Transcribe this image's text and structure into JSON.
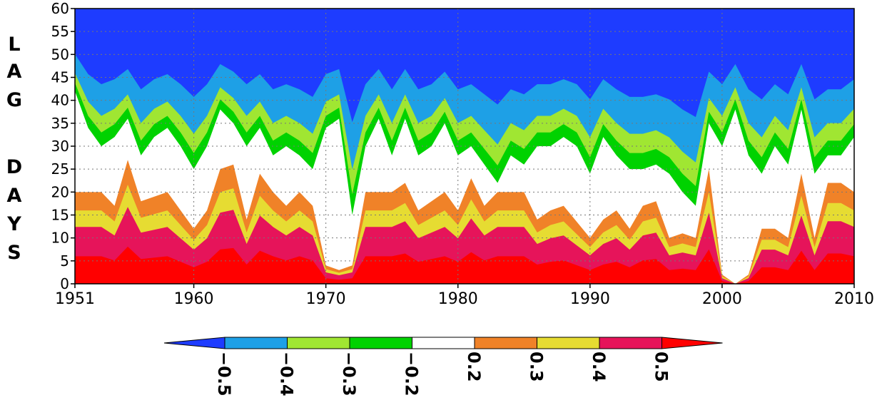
{
  "chart_data": {
    "type": "heatmap",
    "title": "",
    "xlabel": "",
    "ylabel": "LAG DAYS",
    "ylabel_letters": [
      "L",
      "A",
      "G",
      "",
      "D",
      "A",
      "Y",
      "S"
    ],
    "x_range": [
      1951,
      2010
    ],
    "y_range": [
      0,
      60
    ],
    "x_ticks": [
      1951,
      1960,
      1970,
      1980,
      1990,
      2000,
      2010
    ],
    "y_ticks": [
      0,
      5,
      10,
      15,
      20,
      25,
      30,
      35,
      40,
      45,
      50,
      55,
      60
    ],
    "grid": true,
    "colorbar": {
      "labels": [
        "-0.5",
        "-0.4",
        "-0.3",
        "-0.2",
        "0.2",
        "0.3",
        "0.4",
        "0.5"
      ],
      "colors": [
        "#1e3cff",
        "#1ea0e6",
        "#a0e632",
        "#00d200",
        "#ffffff",
        "#f08228",
        "#e6dc32",
        "#e6145a",
        "#ff0000"
      ]
    },
    "fields": {
      "low_lag_top": [
        [
          1951,
          20
        ],
        [
          1953,
          20
        ],
        [
          1954,
          17
        ],
        [
          1955,
          27
        ],
        [
          1956,
          18
        ],
        [
          1958,
          20
        ],
        [
          1960,
          12
        ],
        [
          1961,
          16
        ],
        [
          1962,
          25
        ],
        [
          1963,
          26
        ],
        [
          1964,
          14
        ],
        [
          1965,
          24
        ],
        [
          1966,
          20
        ],
        [
          1967,
          17
        ],
        [
          1968,
          20
        ],
        [
          1969,
          17
        ],
        [
          1970,
          4
        ],
        [
          1971,
          3
        ],
        [
          1972,
          4
        ],
        [
          1973,
          20
        ],
        [
          1975,
          20
        ],
        [
          1976,
          22
        ],
        [
          1977,
          16
        ],
        [
          1979,
          20
        ],
        [
          1980,
          16
        ],
        [
          1981,
          23
        ],
        [
          1982,
          17
        ],
        [
          1983,
          20
        ],
        [
          1985,
          20
        ],
        [
          1986,
          14
        ],
        [
          1987,
          16
        ],
        [
          1988,
          17
        ],
        [
          1990,
          10
        ],
        [
          1991,
          14
        ],
        [
          1992,
          16
        ],
        [
          1993,
          12
        ],
        [
          1994,
          17
        ],
        [
          1995,
          18
        ],
        [
          1996,
          10
        ],
        [
          1997,
          11
        ],
        [
          1998,
          10
        ],
        [
          1999,
          25
        ],
        [
          2000,
          2
        ],
        [
          2001,
          0
        ],
        [
          2002,
          2
        ],
        [
          2003,
          12
        ],
        [
          2004,
          12
        ],
        [
          2005,
          10
        ],
        [
          2006,
          24
        ],
        [
          2007,
          10
        ],
        [
          2008,
          22
        ],
        [
          2009,
          22
        ],
        [
          2010,
          20
        ]
      ],
      "high_lag_bottom": [
        [
          1951,
          42
        ],
        [
          1952,
          34
        ],
        [
          1953,
          30
        ],
        [
          1954,
          32
        ],
        [
          1955,
          36
        ],
        [
          1956,
          28
        ],
        [
          1957,
          32
        ],
        [
          1958,
          34
        ],
        [
          1959,
          30
        ],
        [
          1960,
          25
        ],
        [
          1961,
          30
        ],
        [
          1962,
          38
        ],
        [
          1963,
          35
        ],
        [
          1964,
          30
        ],
        [
          1965,
          34
        ],
        [
          1966,
          28
        ],
        [
          1967,
          30
        ],
        [
          1968,
          28
        ],
        [
          1969,
          25
        ],
        [
          1970,
          34
        ],
        [
          1971,
          36
        ],
        [
          1972,
          15
        ],
        [
          1973,
          30
        ],
        [
          1974,
          36
        ],
        [
          1975,
          28
        ],
        [
          1976,
          36
        ],
        [
          1977,
          28
        ],
        [
          1978,
          30
        ],
        [
          1979,
          35
        ],
        [
          1980,
          28
        ],
        [
          1981,
          30
        ],
        [
          1982,
          26
        ],
        [
          1983,
          22
        ],
        [
          1984,
          28
        ],
        [
          1985,
          26
        ],
        [
          1986,
          30
        ],
        [
          1987,
          30
        ],
        [
          1988,
          32
        ],
        [
          1989,
          30
        ],
        [
          1990,
          24
        ],
        [
          1991,
          32
        ],
        [
          1992,
          28
        ],
        [
          1993,
          25
        ],
        [
          1994,
          25
        ],
        [
          1995,
          26
        ],
        [
          1996,
          24
        ],
        [
          1997,
          20
        ],
        [
          1998,
          17
        ],
        [
          1999,
          35
        ],
        [
          2000,
          30
        ],
        [
          2001,
          38
        ],
        [
          2002,
          28
        ],
        [
          2003,
          24
        ],
        [
          2004,
          30
        ],
        [
          2005,
          26
        ],
        [
          2006,
          38
        ],
        [
          2007,
          24
        ],
        [
          2008,
          28
        ],
        [
          2009,
          28
        ],
        [
          2010,
          32
        ]
      ]
    }
  }
}
